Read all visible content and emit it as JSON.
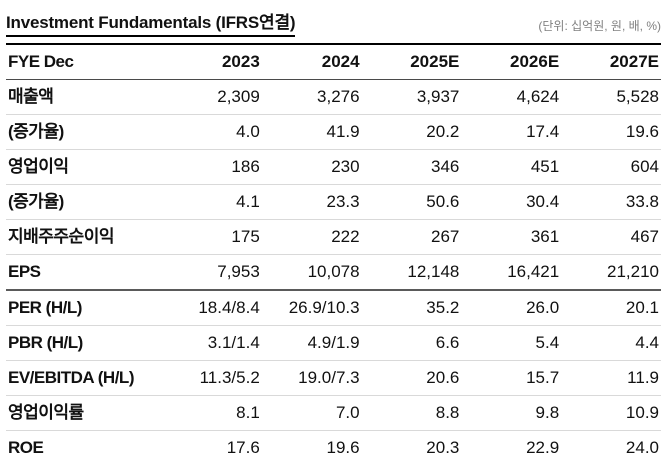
{
  "title": "Investment Fundamentals (IFRS연결)",
  "unit_note": "(단위: 십억원, 원, 배, %)",
  "chart_data": {
    "type": "table",
    "title": "Investment Fundamentals (IFRS연결)",
    "columns": [
      "FYE Dec",
      "2023",
      "2024",
      "2025E",
      "2026E",
      "2027E"
    ],
    "rows": [
      [
        "매출액",
        "2,309",
        "3,276",
        "3,937",
        "4,624",
        "5,528"
      ],
      [
        "(증가율)",
        "4.0",
        "41.9",
        "20.2",
        "17.4",
        "19.6"
      ],
      [
        "영업이익",
        "186",
        "230",
        "346",
        "451",
        "604"
      ],
      [
        "(증가율)",
        "4.1",
        "23.3",
        "50.6",
        "30.4",
        "33.8"
      ],
      [
        "지배주주순이익",
        "175",
        "222",
        "267",
        "361",
        "467"
      ],
      [
        "EPS",
        "7,953",
        "10,078",
        "12,148",
        "16,421",
        "21,210"
      ],
      [
        "PER (H/L)",
        "18.4/8.4",
        "26.9/10.3",
        "35.2",
        "26.0",
        "20.1"
      ],
      [
        "PBR (H/L)",
        "3.1/1.4",
        "4.9/1.9",
        "6.6",
        "5.4",
        "4.4"
      ],
      [
        "EV/EBITDA (H/L)",
        "11.3/5.2",
        "19.0/7.3",
        "20.6",
        "15.7",
        "11.9"
      ],
      [
        "영업이익률",
        "8.1",
        "7.0",
        "8.8",
        "9.8",
        "10.9"
      ],
      [
        "ROE",
        "17.6",
        "19.6",
        "20.3",
        "22.9",
        "24.0"
      ]
    ]
  },
  "table": {
    "header": [
      "FYE Dec",
      "2023",
      "2024",
      "2025E",
      "2026E",
      "2027E"
    ],
    "rows": [
      {
        "label": "매출액",
        "values": [
          "2,309",
          "3,276",
          "3,937",
          "4,624",
          "5,528"
        ]
      },
      {
        "label": "(증가율)",
        "values": [
          "4.0",
          "41.9",
          "20.2",
          "17.4",
          "19.6"
        ]
      },
      {
        "label": "영업이익",
        "values": [
          "186",
          "230",
          "346",
          "451",
          "604"
        ]
      },
      {
        "label": "(증가율)",
        "values": [
          "4.1",
          "23.3",
          "50.6",
          "30.4",
          "33.8"
        ]
      },
      {
        "label": "지배주주순이익",
        "values": [
          "175",
          "222",
          "267",
          "361",
          "467"
        ]
      },
      {
        "label": "EPS",
        "values": [
          "7,953",
          "10,078",
          "12,148",
          "16,421",
          "21,210"
        ]
      },
      {
        "label": "PER (H/L)",
        "values": [
          "18.4/8.4",
          "26.9/10.3",
          "35.2",
          "26.0",
          "20.1"
        ]
      },
      {
        "label": "PBR (H/L)",
        "values": [
          "3.1/1.4",
          "4.9/1.9",
          "6.6",
          "5.4",
          "4.4"
        ]
      },
      {
        "label": "EV/EBITDA (H/L)",
        "values": [
          "11.3/5.2",
          "19.0/7.3",
          "20.6",
          "15.7",
          "11.9"
        ]
      },
      {
        "label": "영업이익률",
        "values": [
          "8.1",
          "7.0",
          "8.8",
          "9.8",
          "10.9"
        ]
      },
      {
        "label": "ROE",
        "values": [
          "17.6",
          "19.6",
          "20.3",
          "22.9",
          "24.0"
        ]
      }
    ]
  }
}
